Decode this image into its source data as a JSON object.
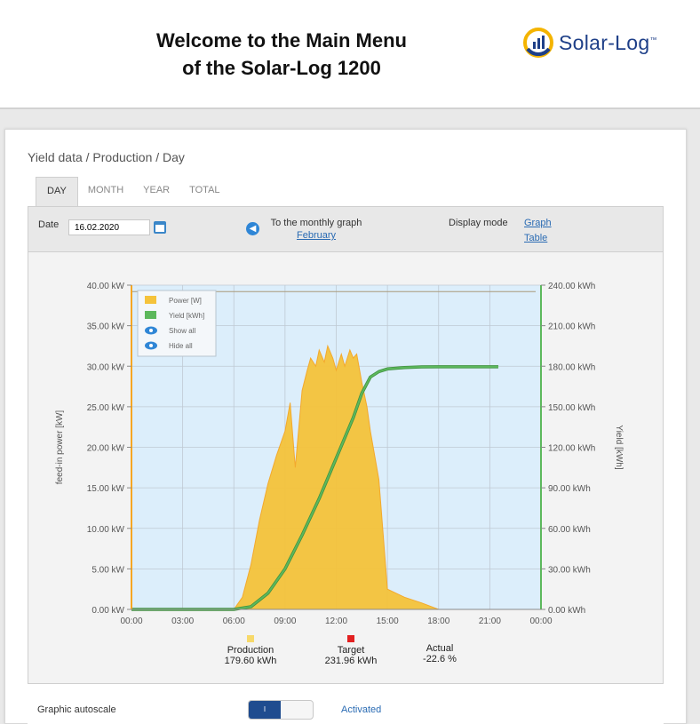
{
  "header": {
    "welcome_line1": "Welcome to the Main Menu",
    "welcome_line2": "of the Solar-Log 1200",
    "logo_text": "Solar-Log",
    "logo_tm": "™"
  },
  "breadcrumb": "Yield data / Production / Day",
  "tabs": [
    {
      "label": "DAY",
      "active": true
    },
    {
      "label": "MONTH",
      "active": false
    },
    {
      "label": "YEAR",
      "active": false
    },
    {
      "label": "TOTAL",
      "active": false
    }
  ],
  "toolbar": {
    "date_label": "Date",
    "date_value": "16.02.2020",
    "monthly_label": "To the monthly graph",
    "monthly_link": "February",
    "display_mode_label": "Display mode",
    "mode_graph": "Graph",
    "mode_table": "Table"
  },
  "chart_data": {
    "type": "area",
    "ylabel": "feed-in power [kW]",
    "y2label": "Yield [kWh]",
    "x_ticks": [
      "00:00",
      "03:00",
      "06:00",
      "09:00",
      "12:00",
      "15:00",
      "18:00",
      "21:00",
      "00:00"
    ],
    "y_ticks": [
      "0.00 kW",
      "5.00 kW",
      "10.00 kW",
      "15.00 kW",
      "20.00 kW",
      "25.00 kW",
      "30.00 kW",
      "35.00 kW",
      "40.00 kW"
    ],
    "y2_ticks": [
      "0.00 kWh",
      "30.00 kWh",
      "60.00 kWh",
      "90.00 kWh",
      "120.00 kWh",
      "150.00 kWh",
      "180.00 kWh",
      "210.00 kWh",
      "240.00 kWh"
    ],
    "ylim": [
      0,
      40
    ],
    "y2lim": [
      0,
      240
    ],
    "xlim_hours": [
      0,
      24
    ],
    "grid": true,
    "legend": {
      "position": "top-left",
      "items": [
        {
          "label": "Power [W]",
          "color": "#f5c33b"
        },
        {
          "label": "Yield [kWh]",
          "color": "#5cb85c"
        },
        {
          "label": "Show all",
          "icon": "eye-icon"
        },
        {
          "label": "Hide all",
          "icon": "eye-icon"
        }
      ]
    },
    "series": [
      {
        "name": "Power [W]",
        "color": "#f5c33b",
        "stroke": "#f5a623",
        "x_hours": [
          0,
          6.0,
          6.5,
          7.0,
          7.5,
          8.0,
          8.5,
          9.0,
          9.3,
          9.6,
          10.0,
          10.3,
          10.5,
          10.8,
          11.0,
          11.3,
          11.5,
          11.8,
          12.0,
          12.3,
          12.5,
          12.8,
          13.0,
          13.2,
          13.5,
          13.8,
          14.0,
          14.5,
          15.0,
          16.0,
          17.0,
          18.0,
          24
        ],
        "values": [
          0,
          0,
          1.5,
          5.5,
          11.0,
          15.5,
          19.0,
          22.0,
          25.5,
          17.5,
          27.0,
          29.5,
          31.0,
          30.0,
          32.0,
          30.5,
          32.5,
          31.0,
          29.5,
          31.5,
          30.0,
          32.0,
          31.0,
          31.5,
          28.0,
          25.0,
          22.0,
          16.0,
          2.5,
          1.5,
          0.8,
          0,
          0
        ]
      },
      {
        "name": "Yield [kWh]",
        "color": "#5cb85c",
        "x_hours": [
          0,
          6.0,
          7.0,
          8.0,
          9.0,
          10.0,
          11.0,
          12.0,
          13.0,
          13.5,
          14.0,
          14.5,
          15.0,
          16.0,
          17.0,
          18.0,
          21.5
        ],
        "values": [
          0,
          0,
          2,
          12,
          30,
          55,
          82,
          112,
          142,
          160,
          172,
          176,
          178,
          179,
          179.5,
          179.6,
          179.6
        ]
      }
    ],
    "target_line_kw": 39.2
  },
  "summary": [
    {
      "label": "Production",
      "value": "179.60 kWh",
      "color": "#f7d96a"
    },
    {
      "label": "Target",
      "value": "231.96 kWh",
      "color": "#e22020"
    },
    {
      "label": "Actual",
      "value": "-22.6 %"
    }
  ],
  "autoscale": {
    "label": "Graphic autoscale",
    "toggle_text": "I",
    "status": "Activated"
  }
}
